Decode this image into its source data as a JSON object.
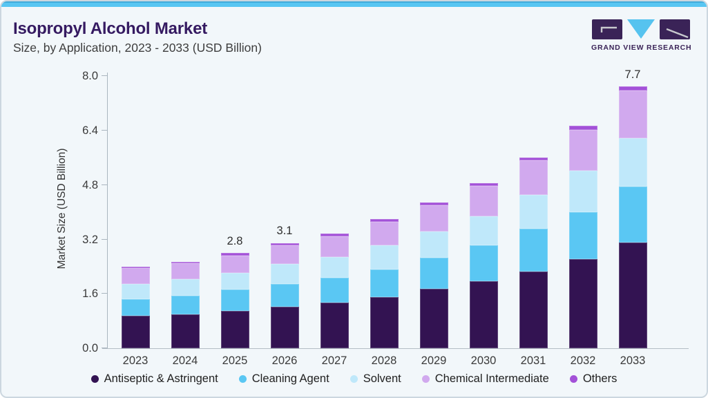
{
  "header": {
    "title": "Isopropyl Alcohol Market",
    "subtitle": "Size, by Application, 2023 - 2033 (USD Billion)"
  },
  "logo": {
    "name": "Grand View Research logo",
    "text": "GRAND VIEW RESEARCH",
    "rect_color": "#3a2357",
    "triangle_color": "#56c3ef",
    "mark_color": "#c8c9ce"
  },
  "chart_data": {
    "type": "bar",
    "stacked": true,
    "title": "Isopropyl Alcohol Market Size, by Application, 2023 - 2033 (USD Billion)",
    "ylabel": "Market Size (USD Billion)",
    "ylim": [
      0,
      8.0
    ],
    "ytick_step": 1.6,
    "yticks": [
      "0.0",
      "1.6",
      "3.2",
      "4.8",
      "6.4",
      "8.0"
    ],
    "grid": false,
    "legend_position": "bottom",
    "categories": [
      "2023",
      "2024",
      "2025",
      "2026",
      "2027",
      "2028",
      "2029",
      "2030",
      "2031",
      "2032",
      "2033"
    ],
    "series": [
      {
        "name": "Antiseptic & Astringent",
        "color": "#331352",
        "values": [
          0.95,
          1.0,
          1.1,
          1.22,
          1.35,
          1.5,
          1.74,
          1.97,
          2.26,
          2.63,
          3.12
        ]
      },
      {
        "name": "Cleaning Agent",
        "color": "#5ac7f3",
        "values": [
          0.5,
          0.55,
          0.62,
          0.68,
          0.73,
          0.82,
          0.92,
          1.05,
          1.25,
          1.38,
          1.64
        ]
      },
      {
        "name": "Solvent",
        "color": "#bfe8fa",
        "values": [
          0.45,
          0.48,
          0.5,
          0.58,
          0.6,
          0.7,
          0.77,
          0.87,
          1.0,
          1.22,
          1.41
        ]
      },
      {
        "name": "Chemical Intermediate",
        "color": "#d1a9ee",
        "values": [
          0.45,
          0.47,
          0.51,
          0.54,
          0.62,
          0.71,
          0.77,
          0.88,
          1.01,
          1.2,
          1.42
        ]
      },
      {
        "name": "Others",
        "color": "#a351d8",
        "values": [
          0.05,
          0.05,
          0.07,
          0.08,
          0.08,
          0.08,
          0.09,
          0.09,
          0.1,
          0.11,
          0.11
        ]
      }
    ],
    "bar_total_labels": [
      "",
      "",
      "2.8",
      "3.1",
      "",
      "",
      "",
      "",
      "",
      "",
      "7.7"
    ]
  }
}
